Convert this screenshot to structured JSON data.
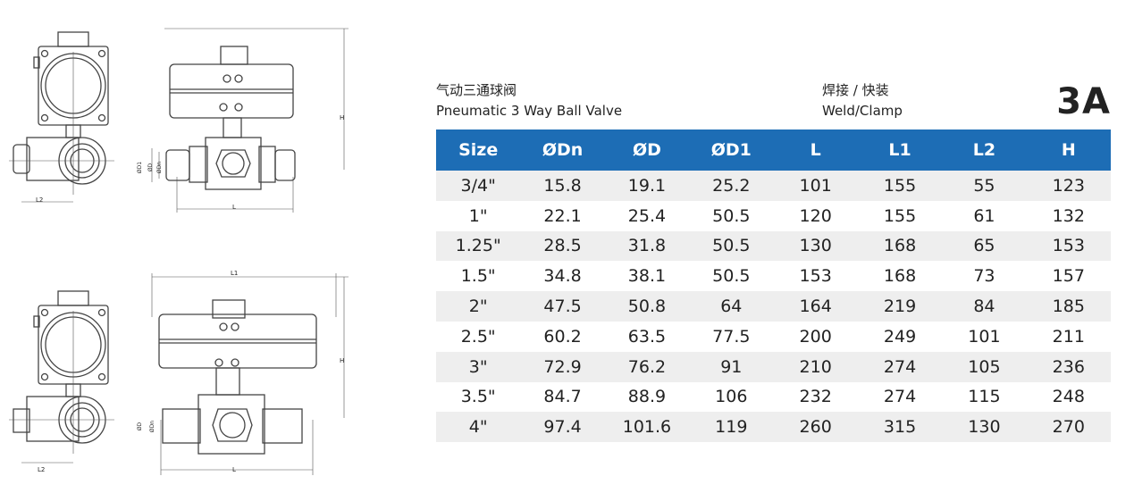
{
  "header": {
    "title_cn": "气动三通球阀",
    "title_en": "Pneumatic 3 Way Ball Valve",
    "connection_cn": "焊接 / 快装",
    "connection_en": "Weld/Clamp",
    "model": "3A"
  },
  "drawing_labels": {
    "top_h": "H",
    "top_l": "L",
    "top_l2": "L2",
    "top_d1": "ØD1",
    "top_d": "ØD",
    "top_dn": "ØDn",
    "bottom_l1": "L1",
    "bottom_h": "H",
    "bottom_l": "L",
    "bottom_l2": "L2",
    "bottom_d": "ØD",
    "bottom_dn": "ØDn"
  },
  "colors": {
    "header_bg": "#1d6db5",
    "row_shade": "#eeeeee"
  },
  "table": {
    "headers": [
      "Size",
      "ØDn",
      "ØD",
      "ØD1",
      "L",
      "L1",
      "L2",
      "H"
    ],
    "rows": [
      [
        "3/4\"",
        "15.8",
        "19.1",
        "25.2",
        "101",
        "155",
        "55",
        "123"
      ],
      [
        "1\"",
        "22.1",
        "25.4",
        "50.5",
        "120",
        "155",
        "61",
        "132"
      ],
      [
        "1.25\"",
        "28.5",
        "31.8",
        "50.5",
        "130",
        "168",
        "65",
        "153"
      ],
      [
        "1.5\"",
        "34.8",
        "38.1",
        "50.5",
        "153",
        "168",
        "73",
        "157"
      ],
      [
        "2\"",
        "47.5",
        "50.8",
        "64",
        "164",
        "219",
        "84",
        "185"
      ],
      [
        "2.5\"",
        "60.2",
        "63.5",
        "77.5",
        "200",
        "249",
        "101",
        "211"
      ],
      [
        "3\"",
        "72.9",
        "76.2",
        "91",
        "210",
        "274",
        "105",
        "236"
      ],
      [
        "3.5\"",
        "84.7",
        "88.9",
        "106",
        "232",
        "274",
        "115",
        "248"
      ],
      [
        "4\"",
        "97.4",
        "101.6",
        "119",
        "260",
        "315",
        "130",
        "270"
      ]
    ]
  }
}
